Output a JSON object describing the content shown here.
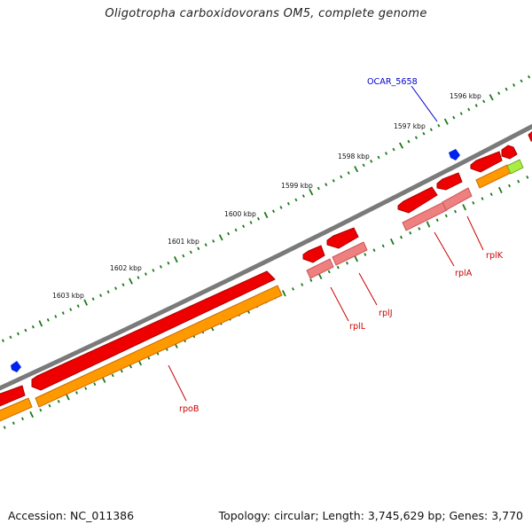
{
  "title": "Oligotropha carboxidovorans OM5, complete genome",
  "footer": {
    "accession_prefix": "Accession:",
    "accession": "NC_011386",
    "topology_prefix": "Topology:",
    "topology": "circular",
    "length_prefix": "Length:",
    "length": "3,745,629 bp",
    "genes_prefix": "Genes:",
    "genes": "3,770"
  },
  "ticks": [
    "1596 kbp",
    "1597 kbp",
    "1598 kbp",
    "1599 kbp",
    "1600 kbp",
    "1601 kbp",
    "1602 kbp",
    "1603 kbp"
  ],
  "genes": [
    {
      "label": "OCAR_5658",
      "color": "#0000cc"
    },
    {
      "label": "rplK",
      "color": "#cc0000"
    },
    {
      "label": "rplA",
      "color": "#cc0000"
    },
    {
      "label": "rplJ",
      "color": "#cc0000"
    },
    {
      "label": "rplL",
      "color": "#cc0000"
    },
    {
      "label": "rpoB",
      "color": "#cc0000"
    }
  ],
  "colors": {
    "backbone": "#7a7a7a",
    "tick_green": "#1a7a1a",
    "cds": "#ee0000",
    "cds_dark": "#aa0000",
    "rna_pink": "#ee8080",
    "orange": "#ff9900",
    "orange_dark": "#cc6a00",
    "lime": "#aaee44",
    "blue_feature": "#0022ee"
  }
}
